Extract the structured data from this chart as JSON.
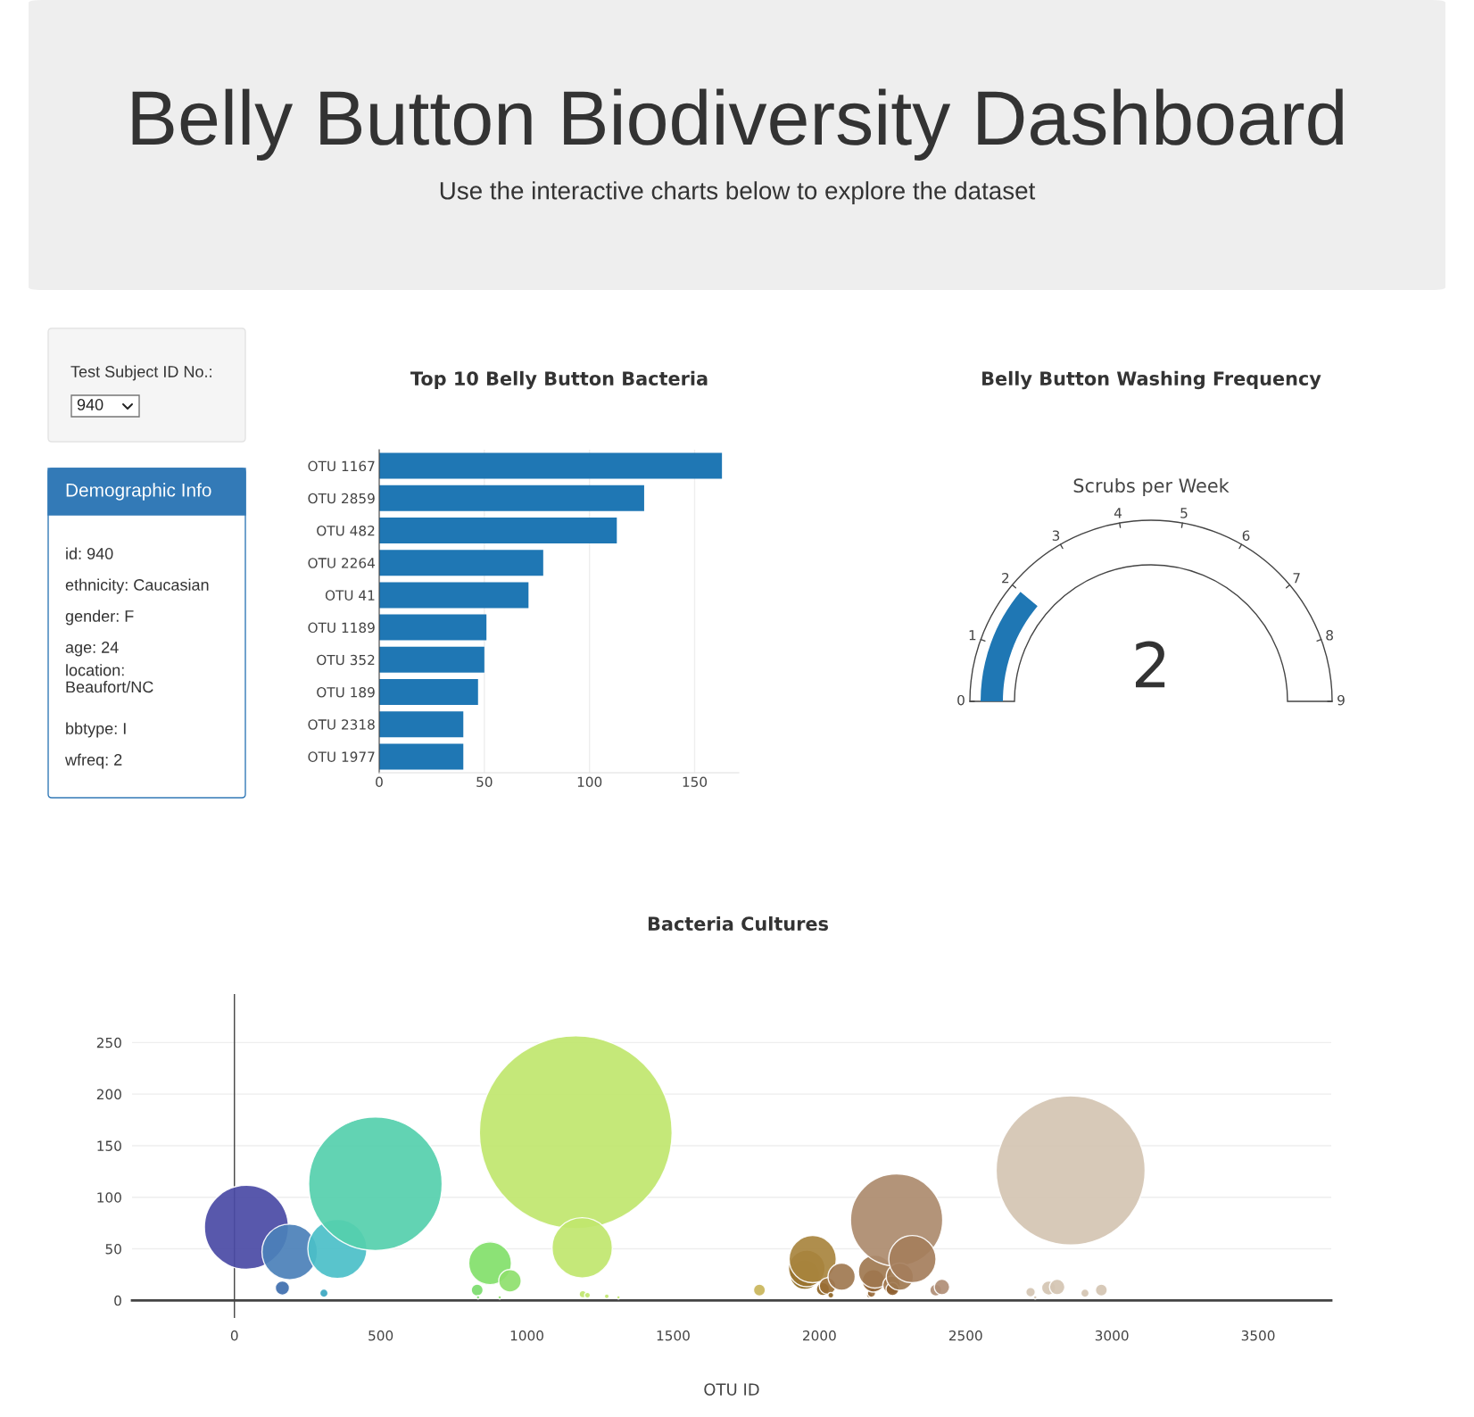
{
  "chart_data": [
    {
      "type": "other",
      "title": "Belly Button Biodiversity Dashboard",
      "subtitle": "Use the interactive charts below to explore the dataset"
    },
    {
      "type": "other",
      "title": "Test Subject ID No.:",
      "annotations": [
        "940"
      ]
    },
    {
      "type": "other",
      "title": "Demographic Info",
      "annotations": [
        "id: 940",
        "ethnicity: Caucasian",
        "gender: F",
        "age: 24",
        "location:\nBeaufort/NC",
        "bbtype: I",
        "wfreq: 2"
      ]
    },
    {
      "type": "bar",
      "orientation": "horizontal",
      "title": "Top 10 Belly Button Bacteria",
      "categories": [
        "OTU 1167",
        "OTU 2859",
        "OTU 482",
        "OTU 2264",
        "OTU 41",
        "OTU 1189",
        "OTU 352",
        "OTU 189",
        "OTU 2318",
        "OTU 1977"
      ],
      "values": [
        163,
        126,
        113,
        78,
        71,
        51,
        50,
        47,
        40,
        40
      ],
      "color": "#1f77b4",
      "xlim": [
        0,
        171
      ],
      "xticks": [
        0,
        50,
        100,
        150
      ],
      "grid": "x"
    },
    {
      "type": "other",
      "title": "Belly Button Washing Frequency",
      "subtitle": "Scrubs per Week",
      "values": [
        2
      ],
      "annotations": [
        "0",
        "1",
        "2",
        "3",
        "4",
        "5",
        "6",
        "7",
        "8",
        "9"
      ],
      "color": "#1f77b4",
      "data_labels": true
    },
    {
      "type": "bubble",
      "title": "Bacteria Cultures",
      "xlabel": "OTU ID",
      "x": [
        41,
        164,
        189,
        306,
        352,
        482,
        830,
        833,
        874,
        907,
        942,
        1167,
        1189,
        1191,
        1207,
        1273,
        1313,
        1795,
        1950,
        1957,
        1977,
        2012,
        2028,
        2039,
        2076,
        2171,
        2178,
        2185,
        2190,
        2247,
        2250,
        2264,
        2275,
        2318,
        2398,
        2419,
        2722,
        2738,
        2784,
        2813,
        2859,
        2908,
        2964
      ],
      "values": [
        71,
        12,
        47,
        7,
        50,
        113,
        10,
        3,
        36,
        3,
        19,
        163,
        51,
        6,
        5,
        4,
        3,
        10,
        25,
        31,
        40,
        11,
        14,
        5,
        23,
        5,
        7,
        19,
        28,
        15,
        11,
        78,
        23,
        40,
        10,
        13,
        8,
        3,
        12,
        13,
        126,
        7,
        10
      ],
      "sizes": [
        0.19,
        0.0054,
        0.083,
        0.0018,
        0.094,
        0.48,
        0.0038,
        0.0003,
        0.049,
        0.0003,
        0.0136,
        1,
        0.098,
        0.0014,
        0.0009,
        0.0006,
        0.0003,
        0.0038,
        0.0235,
        0.036,
        0.06,
        0.0046,
        0.0074,
        0.0009,
        0.0199,
        0.0009,
        0.0018,
        0.0136,
        0.0295,
        0.0085,
        0.0046,
        0.229,
        0.0199,
        0.06,
        0.0038,
        0.0064,
        0.0024,
        0.0003,
        0.0054,
        0.0064,
        0.598,
        0.0018,
        0.0038
      ],
      "colors": [
        "#4a4aa5",
        "#3e6eae",
        "#4b80b8",
        "#3ba7c1",
        "#4bbfc8",
        "#55cfad",
        "#7bdc6c",
        "#7bdc6c",
        "#82e06a",
        "#88e06a",
        "#8ee06c",
        "#c0e66e",
        "#c0e66e",
        "#c0e66e",
        "#c0e66e",
        "#c0e66e",
        "#c0e66e",
        "#c9b55a",
        "#8e6a1e",
        "#9a7430",
        "#a8843e",
        "#8e6424",
        "#9a6e34",
        "#8e6424",
        "#a07850",
        "#8e6030",
        "#9a6c3e",
        "#8e6030",
        "#a07850",
        "#a0744a",
        "#8e6030",
        "#ad8b6e",
        "#a07850",
        "#a57e5c",
        "#b08e76",
        "#b08e76",
        "#d4c4b2",
        "#d4c4b2",
        "#d4c4b2",
        "#d4c4b2",
        "#d4c4b2",
        "#d4c4b2",
        "#d4c4b2"
      ],
      "xlim": [
        -350,
        3750
      ],
      "ylim": [
        -17,
        297
      ],
      "xticks": [
        0,
        500,
        1000,
        1500,
        2000,
        2500,
        3000,
        3500
      ],
      "yticks": [
        0,
        50,
        100,
        150,
        200,
        250
      ],
      "grid": true,
      "ref_lines": [
        {
          "axis": "x",
          "value": 0,
          "label": null,
          "color": "#444444"
        }
      ]
    }
  ]
}
